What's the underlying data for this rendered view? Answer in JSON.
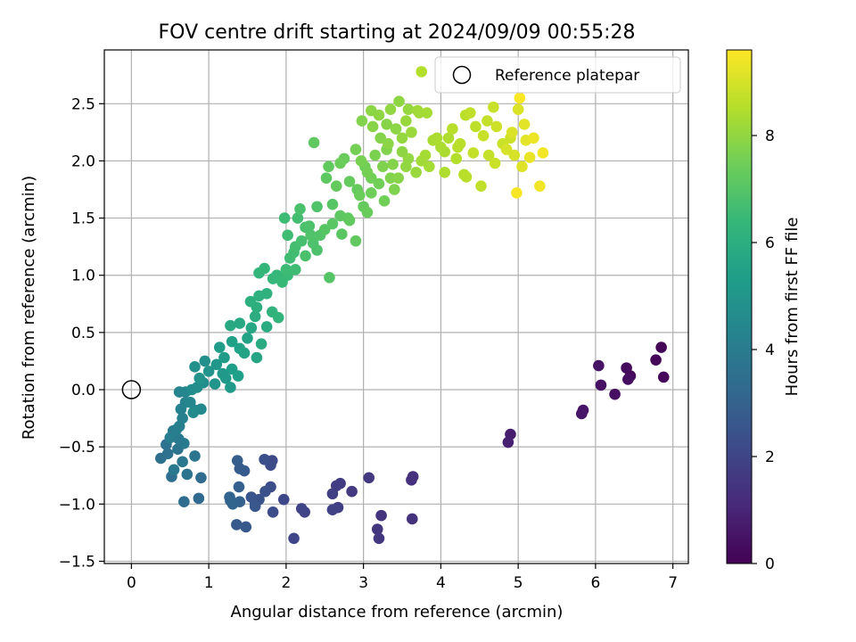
{
  "chart_data": {
    "type": "scatter",
    "title": "FOV centre drift starting at 2024/09/09 00:55:28",
    "xlabel": "Angular distance from reference (arcmin)",
    "ylabel": "Rotation from reference (arcmin)",
    "xlim": [
      -0.35,
      7.2
    ],
    "ylim": [
      -1.52,
      2.97
    ],
    "xticks": [
      0,
      1,
      2,
      3,
      4,
      5,
      6,
      7
    ],
    "yticks": [
      -1.5,
      -1.0,
      -0.5,
      0.0,
      0.5,
      1.0,
      1.5,
      2.0,
      2.5
    ],
    "xtick_labels": [
      "0",
      "1",
      "2",
      "3",
      "4",
      "5",
      "6",
      "7"
    ],
    "ytick_labels": [
      "−1.5",
      "−1.0",
      "−0.5",
      "0.0",
      "0.5",
      "1.0",
      "1.5",
      "2.0",
      "2.5"
    ],
    "grid": true,
    "legend": {
      "position": "top-right",
      "label": "Reference platepar"
    },
    "reference_point": {
      "x": 0.0,
      "y": 0.0
    },
    "colorbar": {
      "label": "Hours from first FF file",
      "colormap": "viridis",
      "range": [
        0,
        9.6
      ],
      "ticks": [
        0,
        2,
        4,
        6,
        8
      ],
      "tick_labels": [
        "0",
        "2",
        "4",
        "6",
        "8"
      ]
    },
    "colormap_stops": [
      "#440154",
      "#482878",
      "#3e4989",
      "#31688e",
      "#26828e",
      "#1f9e89",
      "#35b779",
      "#6ece58",
      "#b5de2b",
      "#fde725"
    ],
    "series": [
      {
        "columns": [
          "x",
          "y",
          "hours"
        ],
        "points": [
          [
            6.85,
            0.37,
            0.1
          ],
          [
            6.78,
            0.26,
            0.15
          ],
          [
            6.88,
            0.11,
            0.2
          ],
          [
            6.45,
            0.12,
            0.25
          ],
          [
            6.4,
            0.19,
            0.3
          ],
          [
            6.42,
            0.09,
            0.35
          ],
          [
            6.25,
            -0.04,
            0.4
          ],
          [
            6.07,
            0.04,
            0.45
          ],
          [
            6.04,
            0.21,
            0.5
          ],
          [
            5.84,
            -0.18,
            0.55
          ],
          [
            5.82,
            -0.21,
            0.6
          ],
          [
            4.9,
            -0.39,
            0.8
          ],
          [
            4.87,
            -0.46,
            0.85
          ],
          [
            3.64,
            -0.76,
            1.3
          ],
          [
            3.62,
            -0.79,
            1.35
          ],
          [
            3.63,
            -1.13,
            1.4
          ],
          [
            3.23,
            -1.1,
            1.45
          ],
          [
            3.18,
            -1.22,
            1.5
          ],
          [
            3.2,
            -1.3,
            1.55
          ],
          [
            3.07,
            -0.77,
            1.6
          ],
          [
            2.85,
            -0.89,
            1.65
          ],
          [
            2.7,
            -0.82,
            1.7
          ],
          [
            2.65,
            -0.84,
            1.75
          ],
          [
            2.6,
            -0.91,
            1.8
          ],
          [
            2.67,
            -1.03,
            1.85
          ],
          [
            2.6,
            -1.05,
            1.9
          ],
          [
            2.24,
            -1.07,
            1.95
          ],
          [
            2.2,
            -1.04,
            2.0
          ],
          [
            2.1,
            -1.3,
            2.05
          ],
          [
            1.97,
            -0.96,
            2.1
          ],
          [
            1.82,
            -0.62,
            2.15
          ],
          [
            1.8,
            -0.66,
            2.2
          ],
          [
            1.83,
            -1.07,
            2.25
          ],
          [
            1.8,
            -0.85,
            2.3
          ],
          [
            1.72,
            -0.61,
            2.35
          ],
          [
            1.73,
            -0.89,
            2.4
          ],
          [
            1.65,
            -0.96,
            2.45
          ],
          [
            1.6,
            -1.0,
            2.5
          ],
          [
            1.55,
            -0.94,
            2.55
          ],
          [
            1.6,
            -1.02,
            2.6
          ],
          [
            1.48,
            -1.2,
            2.65
          ],
          [
            1.36,
            -1.18,
            2.7
          ],
          [
            1.46,
            -0.71,
            2.75
          ],
          [
            1.4,
            -0.69,
            2.8
          ],
          [
            1.37,
            -0.62,
            2.85
          ],
          [
            1.39,
            -0.85,
            2.9
          ],
          [
            1.4,
            -0.98,
            2.95
          ],
          [
            1.28,
            -0.97,
            3.0
          ],
          [
            1.27,
            -0.94,
            3.05
          ],
          [
            1.31,
            -1.0,
            3.1
          ],
          [
            0.87,
            -0.95,
            3.3
          ],
          [
            0.9,
            -0.77,
            3.35
          ],
          [
            0.68,
            -0.98,
            3.4
          ],
          [
            0.52,
            -0.76,
            3.45
          ],
          [
            0.38,
            -0.6,
            3.5
          ],
          [
            0.47,
            -0.56,
            3.55
          ],
          [
            0.45,
            -0.48,
            3.6
          ],
          [
            0.6,
            -0.52,
            3.65
          ],
          [
            0.72,
            -0.74,
            3.7
          ],
          [
            0.82,
            -0.58,
            3.75
          ],
          [
            0.66,
            -0.63,
            3.8
          ],
          [
            0.55,
            -0.7,
            3.85
          ],
          [
            0.61,
            -0.43,
            3.9
          ],
          [
            0.68,
            -0.47,
            3.95
          ],
          [
            0.54,
            -0.36,
            4.0
          ],
          [
            0.58,
            -0.35,
            4.05
          ],
          [
            0.5,
            -0.42,
            4.1
          ],
          [
            0.62,
            -0.32,
            4.15
          ],
          [
            0.66,
            -0.25,
            4.2
          ],
          [
            0.64,
            -0.17,
            4.25
          ],
          [
            0.7,
            -0.11,
            4.3
          ],
          [
            0.62,
            -0.02,
            4.35
          ],
          [
            0.7,
            -0.02,
            4.4
          ],
          [
            0.76,
            -0.11,
            4.45
          ],
          [
            0.82,
            -0.18,
            4.5
          ],
          [
            0.9,
            -0.17,
            4.55
          ],
          [
            0.8,
            -0.2,
            4.6
          ],
          [
            0.78,
            0.0,
            4.65
          ],
          [
            0.85,
            0.02,
            4.7
          ],
          [
            0.93,
            0.06,
            4.75
          ],
          [
            0.95,
            0.25,
            4.8
          ],
          [
            0.82,
            0.2,
            4.85
          ],
          [
            0.88,
            0.1,
            4.9
          ],
          [
            1.0,
            0.16,
            4.95
          ],
          [
            1.08,
            0.05,
            5.0
          ],
          [
            1.1,
            0.22,
            5.05
          ],
          [
            1.18,
            0.14,
            5.1
          ],
          [
            1.22,
            0.1,
            5.15
          ],
          [
            1.28,
            0.02,
            5.2
          ],
          [
            1.2,
            0.28,
            5.25
          ],
          [
            1.14,
            0.37,
            5.3
          ],
          [
            1.3,
            0.18,
            5.35
          ],
          [
            1.38,
            0.12,
            5.4
          ],
          [
            1.3,
            0.42,
            5.45
          ],
          [
            1.4,
            0.36,
            5.5
          ],
          [
            1.5,
            0.45,
            5.55
          ],
          [
            1.46,
            0.32,
            5.6
          ],
          [
            1.62,
            0.28,
            5.65
          ],
          [
            1.55,
            0.54,
            5.7
          ],
          [
            1.4,
            0.58,
            5.75
          ],
          [
            1.28,
            0.56,
            5.8
          ],
          [
            1.68,
            0.4,
            5.85
          ],
          [
            1.75,
            0.55,
            5.9
          ],
          [
            1.6,
            0.64,
            5.95
          ],
          [
            1.62,
            0.72,
            6.0
          ],
          [
            1.54,
            0.77,
            6.05
          ],
          [
            1.65,
            0.82,
            6.1
          ],
          [
            1.75,
            0.84,
            6.15
          ],
          [
            1.82,
            0.68,
            6.2
          ],
          [
            1.9,
            0.63,
            6.25
          ],
          [
            1.65,
            1.02,
            6.3
          ],
          [
            1.72,
            1.06,
            6.35
          ],
          [
            1.83,
            0.97,
            6.4
          ],
          [
            1.95,
            0.94,
            6.45
          ],
          [
            2.02,
            1.0,
            6.5
          ],
          [
            2.0,
            1.05,
            6.55
          ],
          [
            2.05,
            1.15,
            6.6
          ],
          [
            2.1,
            1.2,
            6.65
          ],
          [
            2.12,
            1.25,
            6.7
          ],
          [
            2.2,
            1.3,
            6.75
          ],
          [
            2.25,
            1.17,
            6.8
          ],
          [
            2.4,
            1.22,
            6.85
          ],
          [
            2.32,
            1.35,
            6.9
          ],
          [
            2.44,
            1.35,
            6.95
          ],
          [
            2.56,
            0.98,
            7.0
          ],
          [
            2.5,
            1.4,
            7.05
          ],
          [
            2.6,
            1.45,
            7.1
          ],
          [
            2.7,
            1.52,
            7.15
          ],
          [
            2.8,
            1.5,
            7.2
          ],
          [
            2.9,
            1.3,
            7.25
          ],
          [
            3.0,
            1.6,
            7.3
          ],
          [
            3.05,
            1.55,
            7.35
          ],
          [
            2.95,
            1.7,
            7.4
          ],
          [
            3.1,
            1.72,
            7.45
          ],
          [
            3.2,
            1.8,
            7.5
          ],
          [
            3.05,
            1.9,
            7.55
          ],
          [
            2.97,
            2.0,
            7.6
          ],
          [
            3.15,
            2.05,
            7.65
          ],
          [
            3.25,
            1.95,
            7.7
          ],
          [
            3.3,
            2.1,
            7.75
          ],
          [
            3.38,
            1.97,
            7.8
          ],
          [
            3.45,
            1.85,
            7.85
          ],
          [
            3.32,
            2.15,
            7.9
          ],
          [
            3.2,
            2.4,
            7.95
          ],
          [
            3.35,
            2.45,
            8.0
          ],
          [
            3.5,
            2.2,
            8.05
          ],
          [
            3.55,
            2.35,
            8.1
          ],
          [
            3.62,
            2.25,
            8.15
          ],
          [
            3.7,
            2.44,
            8.2
          ],
          [
            3.75,
            2.0,
            8.25
          ],
          [
            3.85,
            1.95,
            8.3
          ],
          [
            3.9,
            2.18,
            8.35
          ],
          [
            4.0,
            2.12,
            8.4
          ],
          [
            4.1,
            2.2,
            8.45
          ],
          [
            4.2,
            2.02,
            8.5
          ],
          [
            4.3,
            1.88,
            8.55
          ],
          [
            4.32,
            2.4,
            8.6
          ],
          [
            4.45,
            2.3,
            8.65
          ],
          [
            4.52,
            1.78,
            8.7
          ],
          [
            4.62,
            2.05,
            8.75
          ],
          [
            4.68,
            2.47,
            8.8
          ],
          [
            4.8,
            2.15,
            8.85
          ],
          [
            4.9,
            2.2,
            8.9
          ],
          [
            4.95,
            2.05,
            9.0
          ],
          [
            5.0,
            2.45,
            9.1
          ],
          [
            5.05,
            1.95,
            9.15
          ],
          [
            5.1,
            2.18,
            9.2
          ],
          [
            5.15,
            2.03,
            9.3
          ],
          [
            5.2,
            2.2,
            9.35
          ],
          [
            5.28,
            1.78,
            9.4
          ],
          [
            5.32,
            2.07,
            9.45
          ],
          [
            4.98,
            1.72,
            9.5
          ],
          [
            5.02,
            2.55,
            9.55
          ],
          [
            2.4,
            1.6,
            6.9
          ],
          [
            2.15,
            1.5,
            6.7
          ],
          [
            1.98,
            1.5,
            6.55
          ],
          [
            2.3,
            1.43,
            6.85
          ],
          [
            2.6,
            1.62,
            7.05
          ],
          [
            2.72,
            1.36,
            7.1
          ],
          [
            2.92,
            1.75,
            7.3
          ],
          [
            3.1,
            1.85,
            7.5
          ],
          [
            2.82,
            1.82,
            7.3
          ],
          [
            3.22,
            2.2,
            7.8
          ],
          [
            3.46,
            2.52,
            7.95
          ],
          [
            3.12,
            2.3,
            7.85
          ],
          [
            2.9,
            2.1,
            7.55
          ],
          [
            2.7,
            1.98,
            7.4
          ],
          [
            2.52,
            1.85,
            7.15
          ],
          [
            2.36,
            2.16,
            7.2
          ],
          [
            3.58,
            2.02,
            8.0
          ],
          [
            3.4,
            1.75,
            7.7
          ],
          [
            3.68,
            1.9,
            8.1
          ],
          [
            3.8,
            2.05,
            8.3
          ],
          [
            3.95,
            2.2,
            8.4
          ],
          [
            4.05,
            1.9,
            8.45
          ],
          [
            4.15,
            2.28,
            8.55
          ],
          [
            4.25,
            2.15,
            8.6
          ],
          [
            4.38,
            2.42,
            8.7
          ],
          [
            4.42,
            2.07,
            8.75
          ],
          [
            4.55,
            2.22,
            8.8
          ],
          [
            4.7,
            1.98,
            8.85
          ],
          [
            4.72,
            2.3,
            8.9
          ],
          [
            4.85,
            2.1,
            9.0
          ],
          [
            4.92,
            2.25,
            9.1
          ],
          [
            5.08,
            2.32,
            9.2
          ],
          [
            3.1,
            2.44,
            7.9
          ],
          [
            3.55,
            1.95,
            8.0
          ],
          [
            3.02,
            1.95,
            7.5
          ],
          [
            2.82,
            1.48,
            7.25
          ],
          [
            3.27,
            1.65,
            7.5
          ],
          [
            3.58,
            2.45,
            8.05
          ],
          [
            3.72,
            2.42,
            8.25
          ],
          [
            3.82,
            2.42,
            8.3
          ],
          [
            3.75,
            2.78,
            8.5
          ],
          [
            4.05,
            2.08,
            8.4
          ],
          [
            4.22,
            2.12,
            8.55
          ],
          [
            4.33,
            1.86,
            8.6
          ],
          [
            4.6,
            2.35,
            8.75
          ],
          [
            2.18,
            1.58,
            6.8
          ],
          [
            2.02,
            1.35,
            6.6
          ],
          [
            2.12,
            1.05,
            6.6
          ],
          [
            2.25,
            1.42,
            6.8
          ],
          [
            1.88,
            1.0,
            6.4
          ],
          [
            2.35,
            1.28,
            6.85
          ],
          [
            2.55,
            1.95,
            7.25
          ],
          [
            2.75,
            2.02,
            7.35
          ],
          [
            2.65,
            1.78,
            7.3
          ],
          [
            2.98,
            2.35,
            7.75
          ],
          [
            3.3,
            2.32,
            7.85
          ],
          [
            3.42,
            2.28,
            7.9
          ],
          [
            3.5,
            2.08,
            7.95
          ],
          [
            3.35,
            1.85,
            7.75
          ]
        ]
      }
    ]
  }
}
